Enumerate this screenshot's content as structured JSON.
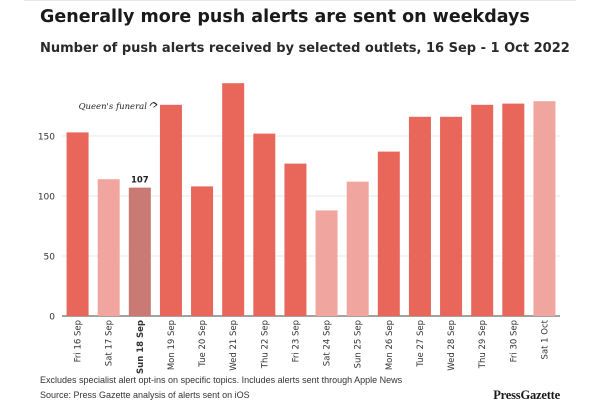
{
  "title": "Generally more push alerts are sent on weekdays",
  "subtitle": "Number of push alerts received by selected outlets, 16 Sep - 1 Oct 2022",
  "footnote": "Excludes specialist alert opt-ins on specific topics. Includes alerts sent through Apple News",
  "source": "Source: Press Gazette analysis of alerts sent on iOS",
  "brand": "PressGazette",
  "colors": {
    "weekday": "#e8665a",
    "weekend": "#f0a69f",
    "highlight": "#c97a74",
    "axis": "#444444",
    "grid": "#e2e2e2"
  },
  "chart_data": {
    "type": "bar",
    "title": "Generally more push alerts are sent on weekdays",
    "xlabel": "",
    "ylabel": "",
    "ylim": [
      0,
      200
    ],
    "yticks": [
      0,
      50,
      100,
      150
    ],
    "grid": true,
    "categories": [
      "Fri 16 Sep",
      "Sat 17 Sep",
      "Sun 18 Sep",
      "Mon 19 Sep",
      "Tue 20 Sep",
      "Wed 21 Sep",
      "Thu 22 Sep",
      "Fri 23 Sep",
      "Sat 24 Sep",
      "Sun 25 Sep",
      "Mon 26 Sep",
      "Tue 27 Sep",
      "Wed 28 Sep",
      "Thu 29 Sep",
      "Fri 30 Sep",
      "Sat 1 Oct"
    ],
    "values": [
      153,
      114,
      107,
      176,
      108,
      194,
      152,
      127,
      88,
      112,
      137,
      166,
      166,
      176,
      177,
      179
    ],
    "categories_kind": [
      "weekday",
      "weekend",
      "highlight",
      "weekday",
      "weekday",
      "weekday",
      "weekday",
      "weekday",
      "weekend",
      "weekend",
      "weekday",
      "weekday",
      "weekday",
      "weekday",
      "weekday",
      "weekend"
    ],
    "bold_category_index": 2,
    "data_labels": [
      {
        "index": 2,
        "text": "107"
      }
    ],
    "annotations": [
      {
        "index": 3,
        "text": "Queen's funeral"
      }
    ]
  }
}
